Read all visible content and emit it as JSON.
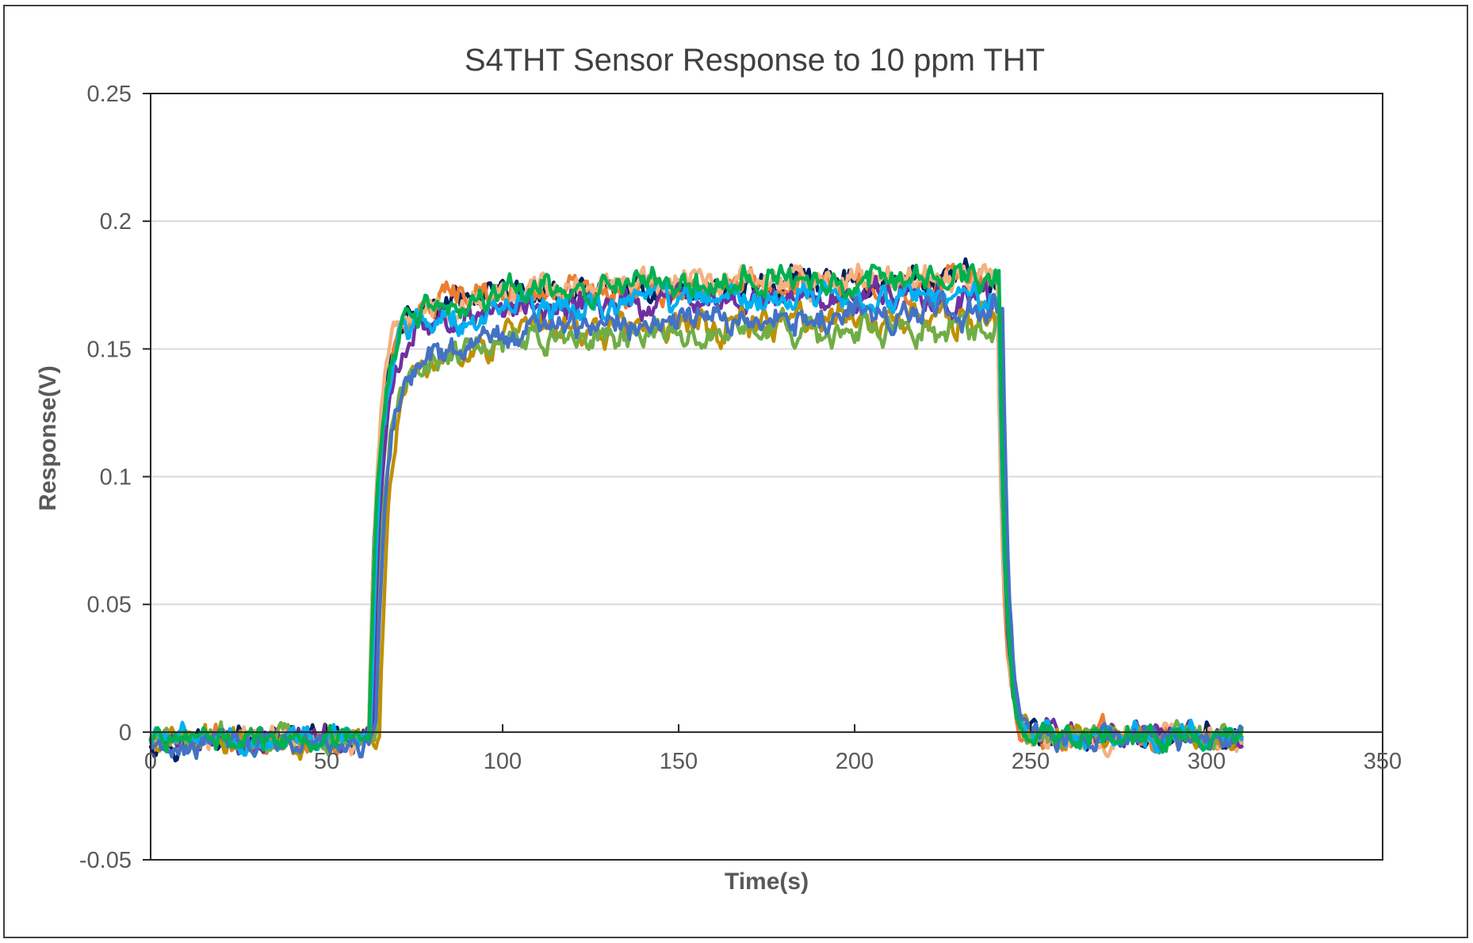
{
  "chart_data": {
    "type": "line",
    "title": "S4THT Sensor Response to 10 ppm THT",
    "xlabel": "Time(s)",
    "ylabel": "Response(V)",
    "xlim": [
      0,
      350
    ],
    "ylim": [
      -0.05,
      0.25
    ],
    "x_ticks": [
      0,
      50,
      100,
      150,
      200,
      250,
      300,
      350
    ],
    "y_ticks": [
      -0.05,
      0,
      0.05,
      0.1,
      0.15,
      0.2,
      0.25
    ],
    "x_tick_labels": [
      "0",
      "50",
      "100",
      "150",
      "200",
      "250",
      "300",
      "350"
    ],
    "y_tick_labels": [
      "-0.05",
      "0",
      "0.05",
      "0.1",
      "0.15",
      "0.2",
      "0.25"
    ],
    "grid": "horizontal",
    "legend": "none",
    "exposure_on_s": 60,
    "exposure_off_s": 240,
    "end_s": 310,
    "series": [
      {
        "color": "#002060",
        "plateau_start": 0.163,
        "plateau_end": 0.176,
        "t_rise": 62,
        "t_fall": 241
      },
      {
        "color": "#ED7D31",
        "plateau_start": 0.165,
        "plateau_end": 0.176,
        "t_rise": 62,
        "t_fall": 240.5
      },
      {
        "color": "#F4B183",
        "plateau_start": 0.164,
        "plateau_end": 0.177,
        "t_rise": 62,
        "t_fall": 240.5
      },
      {
        "color": "#7030A0",
        "plateau_start": 0.158,
        "plateau_end": 0.171,
        "t_rise": 63,
        "t_fall": 241
      },
      {
        "color": "#BF9000",
        "plateau_start": 0.147,
        "plateau_end": 0.162,
        "t_rise": 65,
        "t_fall": 241.5
      },
      {
        "color": "#70AD47",
        "plateau_start": 0.146,
        "plateau_end": 0.158,
        "t_rise": 64,
        "t_fall": 241.5
      },
      {
        "color": "#00B0F0",
        "plateau_start": 0.16,
        "plateau_end": 0.17,
        "t_rise": 62.5,
        "t_fall": 241
      },
      {
        "color": "#4472C4",
        "plateau_start": 0.144,
        "plateau_end": 0.165,
        "t_rise": 64,
        "t_fall": 242
      },
      {
        "color": "#00B050",
        "plateau_start": 0.166,
        "plateau_end": 0.178,
        "t_rise": 62,
        "t_fall": 241
      }
    ]
  }
}
